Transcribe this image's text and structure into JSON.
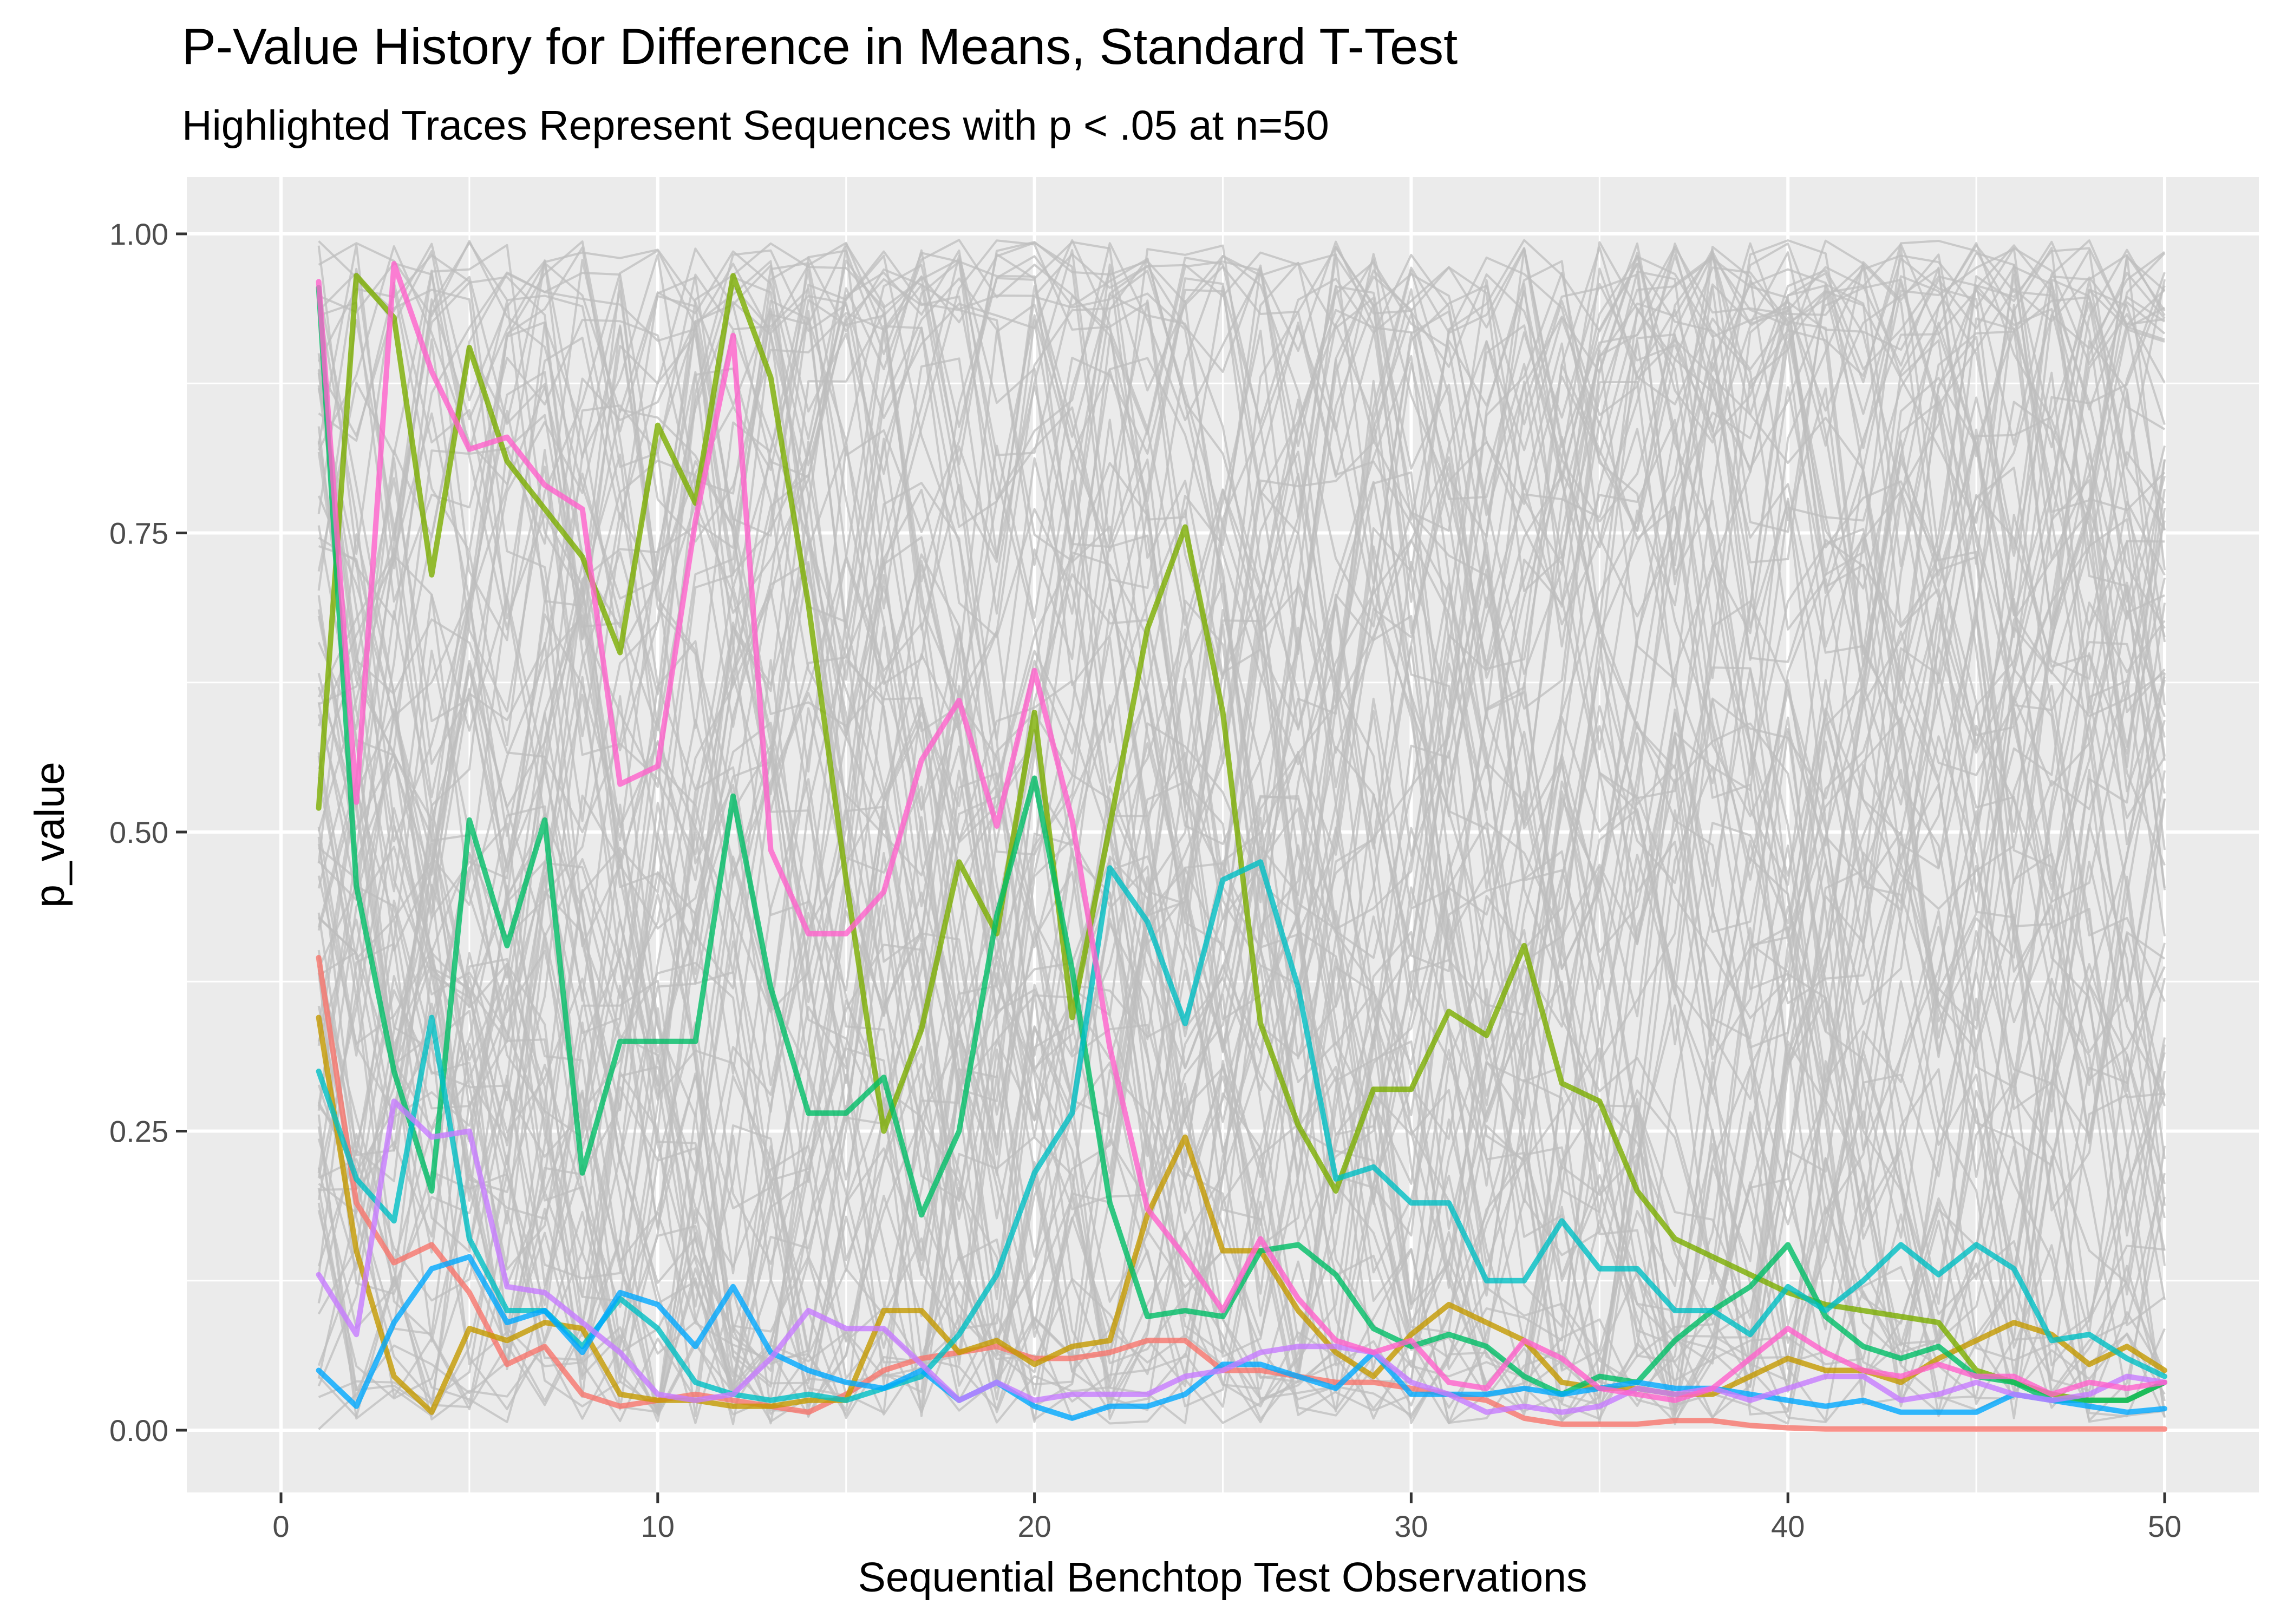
{
  "chart_data": {
    "type": "line",
    "title": "P-Value History for Difference in Means, Standard T-Test",
    "subtitle": "Highlighted Traces Represent Sequences with p < .05 at n=50",
    "xlabel": "Sequential Benchtop Test Observations",
    "ylabel": "p_value",
    "xlim": [
      0,
      50
    ],
    "ylim": [
      0,
      1
    ],
    "x_ticks": [
      0,
      10,
      20,
      30,
      40,
      50
    ],
    "x_tick_labels": [
      "0",
      "10",
      "20",
      "30",
      "40",
      "50"
    ],
    "y_ticks": [
      0,
      0.25,
      0.5,
      0.75,
      1.0
    ],
    "y_tick_labels": [
      "0.00",
      "0.25",
      "0.50",
      "0.75",
      "1.00"
    ],
    "grid": true,
    "legend": "none",
    "panel_background": "#ebebeb",
    "grid_color": "#ffffff",
    "background_series": {
      "count": 96,
      "color": "#bdbdbd",
      "opacity": 0.75,
      "x_start": 1,
      "x_end": 50,
      "value_range": [
        0,
        1
      ]
    },
    "series": [
      {
        "color": "#f8766d",
        "x": [
          1,
          2,
          3,
          4,
          5,
          6,
          7,
          8,
          9,
          10,
          11,
          12,
          13,
          14,
          15,
          16,
          17,
          18,
          19,
          20,
          21,
          22,
          23,
          24,
          25,
          26,
          27,
          28,
          29,
          30,
          31,
          32,
          33,
          34,
          35,
          36,
          37,
          38,
          39,
          40,
          41,
          42,
          43,
          44,
          45,
          46,
          47,
          48,
          49,
          50
        ],
        "values": [
          0.395,
          0.19,
          0.14,
          0.155,
          0.115,
          0.055,
          0.07,
          0.03,
          0.02,
          0.025,
          0.03,
          0.025,
          0.02,
          0.015,
          0.03,
          0.05,
          0.06,
          0.065,
          0.07,
          0.06,
          0.06,
          0.065,
          0.075,
          0.075,
          0.05,
          0.05,
          0.045,
          0.04,
          0.04,
          0.035,
          0.03,
          0.025,
          0.01,
          0.005,
          0.005,
          0.005,
          0.008,
          0.008,
          0.004,
          0.002,
          0.001,
          0.001,
          0.001,
          0.001,
          0.001,
          0.001,
          0.001,
          0.001,
          0.001,
          0.001
        ]
      },
      {
        "color": "#c49a00",
        "x": [
          1,
          2,
          3,
          4,
          5,
          6,
          7,
          8,
          9,
          10,
          11,
          12,
          13,
          14,
          15,
          16,
          17,
          18,
          19,
          20,
          21,
          22,
          23,
          24,
          25,
          26,
          27,
          28,
          29,
          30,
          31,
          32,
          33,
          34,
          35,
          36,
          37,
          38,
          39,
          40,
          41,
          42,
          43,
          44,
          45,
          46,
          47,
          48,
          49,
          50
        ],
        "values": [
          0.345,
          0.15,
          0.045,
          0.015,
          0.085,
          0.075,
          0.09,
          0.085,
          0.03,
          0.025,
          0.025,
          0.02,
          0.02,
          0.025,
          0.025,
          0.1,
          0.1,
          0.065,
          0.075,
          0.055,
          0.07,
          0.075,
          0.18,
          0.245,
          0.15,
          0.15,
          0.1,
          0.065,
          0.045,
          0.08,
          0.105,
          0.09,
          0.075,
          0.04,
          0.035,
          0.035,
          0.03,
          0.03,
          0.045,
          0.06,
          0.05,
          0.05,
          0.04,
          0.06,
          0.075,
          0.09,
          0.08,
          0.055,
          0.07,
          0.05
        ]
      },
      {
        "color": "#7cae00",
        "x": [
          1,
          2,
          3,
          4,
          5,
          6,
          7,
          8,
          9,
          10,
          11,
          12,
          13,
          14,
          15,
          16,
          17,
          18,
          19,
          20,
          21,
          22,
          23,
          24,
          25,
          26,
          27,
          28,
          29,
          30,
          31,
          32,
          33,
          34,
          35,
          36,
          37,
          38,
          39,
          40,
          41,
          42,
          43,
          44,
          45,
          46,
          47,
          48,
          49,
          50
        ],
        "values": [
          0.52,
          0.965,
          0.93,
          0.715,
          0.905,
          0.81,
          0.77,
          0.73,
          0.65,
          0.84,
          0.775,
          0.965,
          0.88,
          0.69,
          0.46,
          0.25,
          0.335,
          0.475,
          0.415,
          0.6,
          0.345,
          0.505,
          0.67,
          0.755,
          0.6,
          0.34,
          0.255,
          0.2,
          0.285,
          0.285,
          0.35,
          0.33,
          0.405,
          0.29,
          0.275,
          0.2,
          0.16,
          0.145,
          0.13,
          0.115,
          0.105,
          0.1,
          0.095,
          0.09,
          0.05,
          0.04,
          0.03,
          0.025,
          0.025,
          0.04
        ]
      },
      {
        "color": "#00be67",
        "x": [
          1,
          2,
          3,
          4,
          5,
          6,
          7,
          8,
          9,
          10,
          11,
          12,
          13,
          14,
          15,
          16,
          17,
          18,
          19,
          20,
          21,
          22,
          23,
          24,
          25,
          26,
          27,
          28,
          29,
          30,
          31,
          32,
          33,
          34,
          35,
          36,
          37,
          38,
          39,
          40,
          41,
          42,
          43,
          44,
          45,
          46,
          47,
          48,
          49,
          50
        ],
        "values": [
          0.955,
          0.455,
          0.3,
          0.2,
          0.51,
          0.405,
          0.51,
          0.215,
          0.325,
          0.325,
          0.325,
          0.53,
          0.37,
          0.265,
          0.265,
          0.295,
          0.18,
          0.25,
          0.43,
          0.545,
          0.385,
          0.19,
          0.095,
          0.1,
          0.095,
          0.15,
          0.155,
          0.13,
          0.085,
          0.07,
          0.08,
          0.07,
          0.045,
          0.03,
          0.045,
          0.04,
          0.075,
          0.1,
          0.12,
          0.155,
          0.095,
          0.07,
          0.06,
          0.07,
          0.045,
          0.04,
          0.025,
          0.025,
          0.025,
          0.04
        ]
      },
      {
        "color": "#00bfc4",
        "x": [
          1,
          2,
          3,
          4,
          5,
          6,
          7,
          8,
          9,
          10,
          11,
          12,
          13,
          14,
          15,
          16,
          17,
          18,
          19,
          20,
          21,
          22,
          23,
          24,
          25,
          26,
          27,
          28,
          29,
          30,
          31,
          32,
          33,
          34,
          35,
          36,
          37,
          38,
          39,
          40,
          41,
          42,
          43,
          44,
          45,
          46,
          47,
          48,
          49,
          50
        ],
        "values": [
          0.3,
          0.21,
          0.175,
          0.345,
          0.16,
          0.1,
          0.1,
          0.07,
          0.11,
          0.085,
          0.04,
          0.03,
          0.025,
          0.03,
          0.025,
          0.035,
          0.045,
          0.08,
          0.13,
          0.215,
          0.265,
          0.47,
          0.425,
          0.34,
          0.46,
          0.475,
          0.37,
          0.21,
          0.22,
          0.19,
          0.19,
          0.125,
          0.125,
          0.175,
          0.135,
          0.135,
          0.1,
          0.1,
          0.08,
          0.12,
          0.1,
          0.125,
          0.155,
          0.13,
          0.155,
          0.135,
          0.075,
          0.08,
          0.06,
          0.045
        ]
      },
      {
        "color": "#00a9ff",
        "x": [
          1,
          2,
          3,
          4,
          5,
          6,
          7,
          8,
          9,
          10,
          11,
          12,
          13,
          14,
          15,
          16,
          17,
          18,
          19,
          20,
          21,
          22,
          23,
          24,
          25,
          26,
          27,
          28,
          29,
          30,
          31,
          32,
          33,
          34,
          35,
          36,
          37,
          38,
          39,
          40,
          41,
          42,
          43,
          44,
          45,
          46,
          47,
          48,
          49,
          50
        ],
        "values": [
          0.05,
          0.02,
          0.09,
          0.135,
          0.145,
          0.09,
          0.1,
          0.065,
          0.115,
          0.105,
          0.07,
          0.12,
          0.065,
          0.05,
          0.04,
          0.035,
          0.05,
          0.025,
          0.04,
          0.02,
          0.01,
          0.02,
          0.02,
          0.03,
          0.055,
          0.055,
          0.045,
          0.035,
          0.065,
          0.03,
          0.03,
          0.03,
          0.035,
          0.03,
          0.035,
          0.04,
          0.035,
          0.035,
          0.03,
          0.025,
          0.02,
          0.025,
          0.015,
          0.015,
          0.015,
          0.03,
          0.025,
          0.02,
          0.015,
          0.018
        ]
      },
      {
        "color": "#c77cff",
        "x": [
          1,
          2,
          3,
          4,
          5,
          6,
          7,
          8,
          9,
          10,
          11,
          12,
          13,
          14,
          15,
          16,
          17,
          18,
          19,
          20,
          21,
          22,
          23,
          24,
          25,
          26,
          27,
          28,
          29,
          30,
          31,
          32,
          33,
          34,
          35,
          36,
          37,
          38,
          39,
          40,
          41,
          42,
          43,
          44,
          45,
          46,
          47,
          48,
          49,
          50
        ],
        "values": [
          0.13,
          0.08,
          0.275,
          0.245,
          0.25,
          0.12,
          0.115,
          0.09,
          0.065,
          0.03,
          0.025,
          0.03,
          0.06,
          0.1,
          0.085,
          0.085,
          0.055,
          0.025,
          0.04,
          0.025,
          0.03,
          0.03,
          0.03,
          0.045,
          0.05,
          0.065,
          0.07,
          0.07,
          0.065,
          0.04,
          0.03,
          0.015,
          0.02,
          0.015,
          0.02,
          0.035,
          0.03,
          0.035,
          0.025,
          0.035,
          0.045,
          0.045,
          0.025,
          0.03,
          0.04,
          0.03,
          0.025,
          0.03,
          0.045,
          0.04
        ]
      },
      {
        "color": "#ff61cc",
        "x": [
          1,
          2,
          3,
          4,
          5,
          6,
          7,
          8,
          9,
          10,
          11,
          12,
          13,
          14,
          15,
          16,
          17,
          18,
          19,
          20,
          21,
          22,
          23,
          24,
          25,
          26,
          27,
          28,
          29,
          30,
          31,
          32,
          33,
          34,
          35,
          36,
          37,
          38,
          39,
          40,
          41,
          42,
          43,
          44,
          45,
          46,
          47,
          48,
          49,
          50
        ],
        "values": [
          0.96,
          0.525,
          0.975,
          0.885,
          0.82,
          0.83,
          0.79,
          0.77,
          0.54,
          0.555,
          0.76,
          0.915,
          0.485,
          0.415,
          0.415,
          0.45,
          0.56,
          0.61,
          0.505,
          0.635,
          0.51,
          0.32,
          0.185,
          0.145,
          0.1,
          0.16,
          0.11,
          0.075,
          0.065,
          0.075,
          0.04,
          0.035,
          0.075,
          0.06,
          0.035,
          0.03,
          0.025,
          0.035,
          0.06,
          0.085,
          0.065,
          0.05,
          0.045,
          0.055,
          0.045,
          0.045,
          0.03,
          0.04,
          0.035,
          0.04
        ]
      }
    ]
  }
}
